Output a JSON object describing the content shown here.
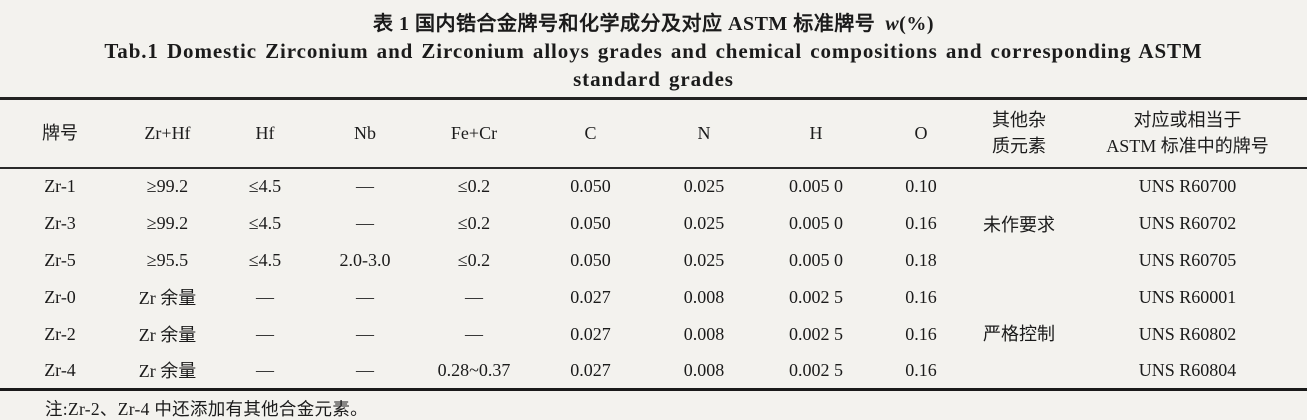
{
  "caption": {
    "title_zh": "表 1 国内锆合金牌号和化学成分及对应 ASTM 标准牌号",
    "unit_symbol": "w",
    "unit_rest": "(%)",
    "title_en_line1": "Tab.1 Domestic Zirconium and Zirconium alloys grades and chemical compositions and corresponding ASTM",
    "title_en_line2": "standard grades"
  },
  "table": {
    "header": {
      "grade": "牌号",
      "zr_hf": "Zr+Hf",
      "hf": "Hf",
      "nb": "Nb",
      "fe_cr": "Fe+Cr",
      "c": "C",
      "n": "N",
      "h": "H",
      "o": "O",
      "impurity_line1": "其他杂",
      "impurity_line2": "质元素",
      "astm_line1": "对应或相当于",
      "astm_line2": "ASTM 标准中的牌号"
    },
    "rows": [
      {
        "grade": "Zr-1",
        "zr_hf": "≥99.2",
        "hf": "≤4.5",
        "nb": "—",
        "fe_cr": "≤0.2",
        "c": "0.050",
        "n": "0.025",
        "h": "0.005 0",
        "o": "0.10",
        "astm": "UNS R60700"
      },
      {
        "grade": "Zr-3",
        "zr_hf": "≥99.2",
        "hf": "≤4.5",
        "nb": "—",
        "fe_cr": "≤0.2",
        "c": "0.050",
        "n": "0.025",
        "h": "0.005 0",
        "o": "0.16",
        "astm": "UNS R60702"
      },
      {
        "grade": "Zr-5",
        "zr_hf": "≥95.5",
        "hf": "≤4.5",
        "nb": "2.0-3.0",
        "fe_cr": "≤0.2",
        "c": "0.050",
        "n": "0.025",
        "h": "0.005 0",
        "o": "0.18",
        "astm": "UNS R60705"
      },
      {
        "grade": "Zr-0",
        "zr_hf": "Zr 余量",
        "hf": "—",
        "nb": "—",
        "fe_cr": "—",
        "c": "0.027",
        "n": "0.008",
        "h": "0.002 5",
        "o": "0.16",
        "astm": "UNS R60001"
      },
      {
        "grade": "Zr-2",
        "zr_hf": "Zr 余量",
        "hf": "—",
        "nb": "—",
        "fe_cr": "—",
        "c": "0.027",
        "n": "0.008",
        "h": "0.002 5",
        "o": "0.16",
        "astm": "UNS R60802"
      },
      {
        "grade": "Zr-4",
        "zr_hf": "Zr 余量",
        "hf": "—",
        "nb": "—",
        "fe_cr": "0.28~0.37",
        "c": "0.027",
        "n": "0.008",
        "h": "0.002 5",
        "o": "0.16",
        "astm": "UNS R60804"
      }
    ],
    "impurity_groups": [
      {
        "label": "未作要求"
      },
      {
        "label": "严格控制"
      }
    ]
  },
  "footnote": "注:Zr-2、Zr-4 中还添加有其他合金元素。"
}
